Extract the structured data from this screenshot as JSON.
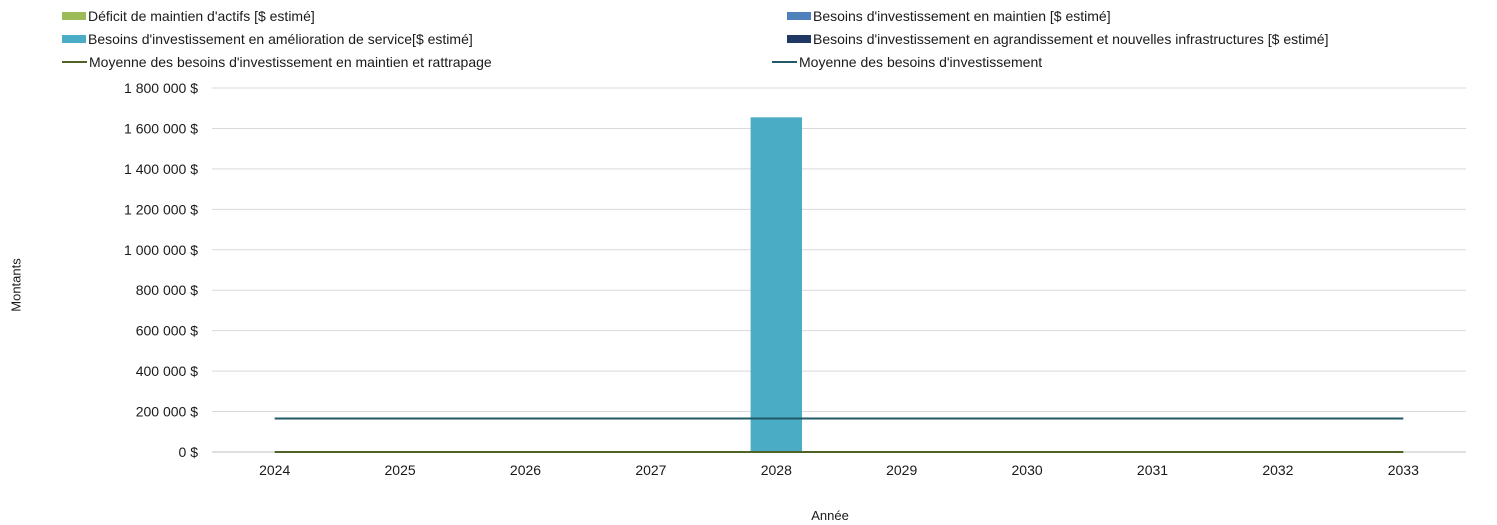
{
  "chart_data": {
    "type": "bar",
    "title": "",
    "xlabel": "Année",
    "ylabel": "Montants",
    "categories": [
      "2024",
      "2025",
      "2026",
      "2027",
      "2028",
      "2029",
      "2030",
      "2031",
      "2032",
      "2033"
    ],
    "ylim": [
      0,
      1800000
    ],
    "yticks": [
      0,
      200000,
      400000,
      600000,
      800000,
      1000000,
      1200000,
      1400000,
      1600000,
      1800000
    ],
    "ytick_labels": [
      "0 $",
      "200 000 $",
      "400 000 $",
      "600 000 $",
      "800 000 $",
      "1 000 000 $",
      "1 200 000 $",
      "1 400 000 $",
      "1 600 000 $",
      "1 800 000 $"
    ],
    "grid": true,
    "legend_position": "top",
    "series": [
      {
        "name": "Déficit de maintien d'actifs [$ estimé]",
        "kind": "bar",
        "color": "#9bbb59",
        "values": [
          0,
          0,
          0,
          0,
          0,
          0,
          0,
          0,
          0,
          0
        ]
      },
      {
        "name": "Besoins d'investissement en maintien [$ estimé]",
        "kind": "bar",
        "color": "#4f81bd",
        "values": [
          0,
          0,
          0,
          0,
          0,
          0,
          0,
          0,
          0,
          0
        ]
      },
      {
        "name": "Besoins d'investissement en amélioration de service[$ estimé]",
        "kind": "bar",
        "color": "#4bacc6",
        "values": [
          0,
          0,
          0,
          0,
          1655000,
          0,
          0,
          0,
          0,
          0
        ]
      },
      {
        "name": "Besoins d'investissement en agrandissement et nouvelles infrastructures [$ estimé]",
        "kind": "bar",
        "color": "#1f3864",
        "values": [
          0,
          0,
          0,
          0,
          0,
          0,
          0,
          0,
          0,
          0
        ]
      },
      {
        "name": "Moyenne des besoins d'investissement en maintien et rattrapage",
        "kind": "line",
        "color": "#4f6228",
        "values": [
          0,
          0,
          0,
          0,
          0,
          0,
          0,
          0,
          0,
          0
        ]
      },
      {
        "name": "Moyenne des besoins d'investissement",
        "kind": "line",
        "color": "#215968",
        "values": [
          165500,
          165500,
          165500,
          165500,
          165500,
          165500,
          165500,
          165500,
          165500,
          165500
        ]
      }
    ]
  }
}
